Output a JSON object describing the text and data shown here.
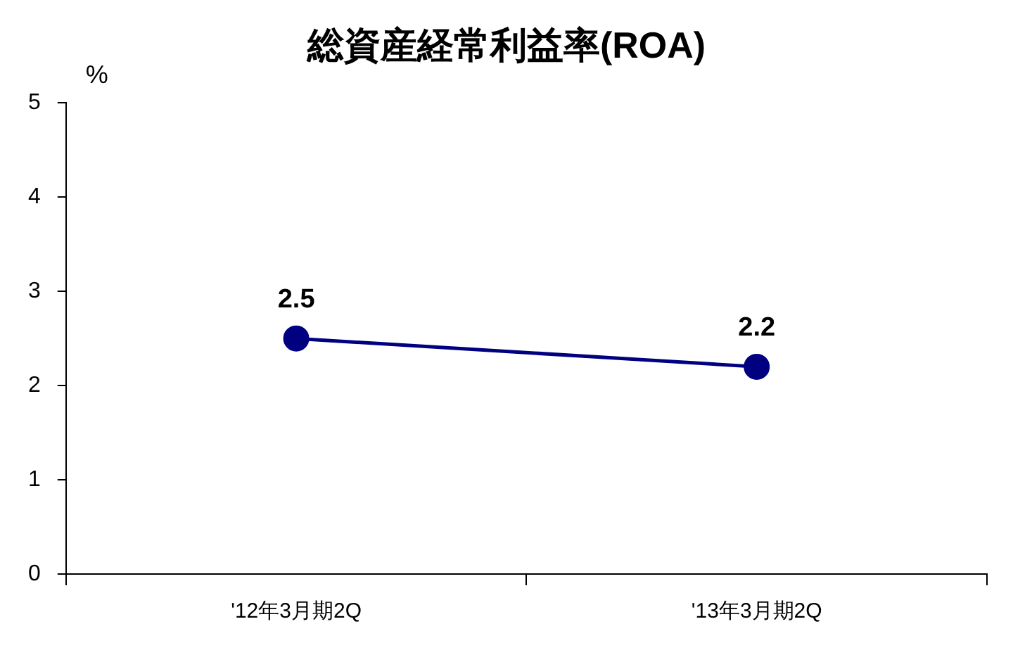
{
  "chart_data": {
    "type": "line",
    "title": "総資産経常利益率(ROA)",
    "ylabel": "%",
    "categories": [
      "'12年3月期2Q",
      "'13年3月期2Q"
    ],
    "series": [
      {
        "color": "#000080",
        "values": [
          2.5,
          2.2
        ]
      }
    ],
    "ylim": [
      0,
      5
    ],
    "yticks": [
      0,
      1,
      2,
      3,
      4,
      5
    ],
    "grid": false,
    "legend": false,
    "marker": "circle",
    "line_style": "solid",
    "data_labels": true
  }
}
